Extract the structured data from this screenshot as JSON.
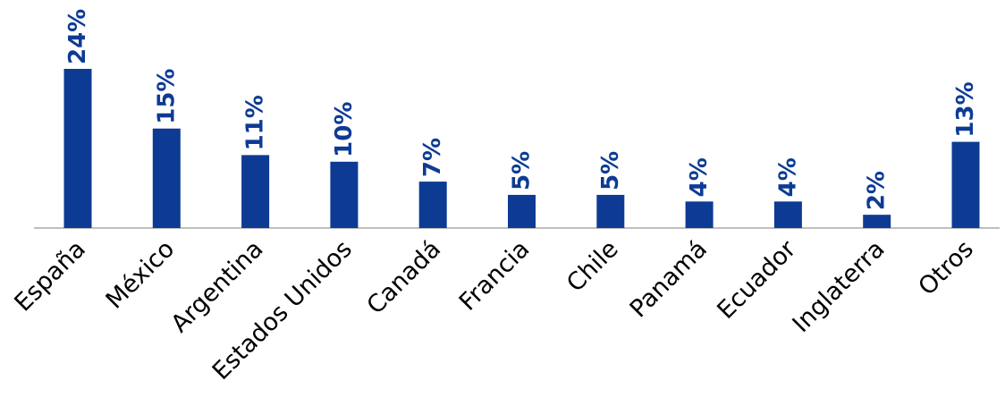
{
  "chart_data": {
    "type": "bar",
    "title": "",
    "xlabel": "",
    "ylabel": "",
    "categories": [
      "España",
      "México",
      "Argentina",
      "Estados Unidos",
      "Canadá",
      "Francia",
      "Chile",
      "Panamá",
      "Ecuador",
      "Inglaterra",
      "Otros"
    ],
    "values": [
      24,
      15,
      11,
      10,
      7,
      5,
      5,
      4,
      4,
      2,
      13
    ],
    "value_labels": [
      "24%",
      "15%",
      "11%",
      "10%",
      "7%",
      "5%",
      "5%",
      "4%",
      "4%",
      "2%",
      "13%"
    ],
    "ylim": [
      0,
      24
    ],
    "grid": false,
    "legend": "none",
    "colors": {
      "bar": "#0D3B94",
      "value_label": "#0D3B94",
      "category_label": "#000000",
      "axis": "#BFBFBF"
    }
  }
}
